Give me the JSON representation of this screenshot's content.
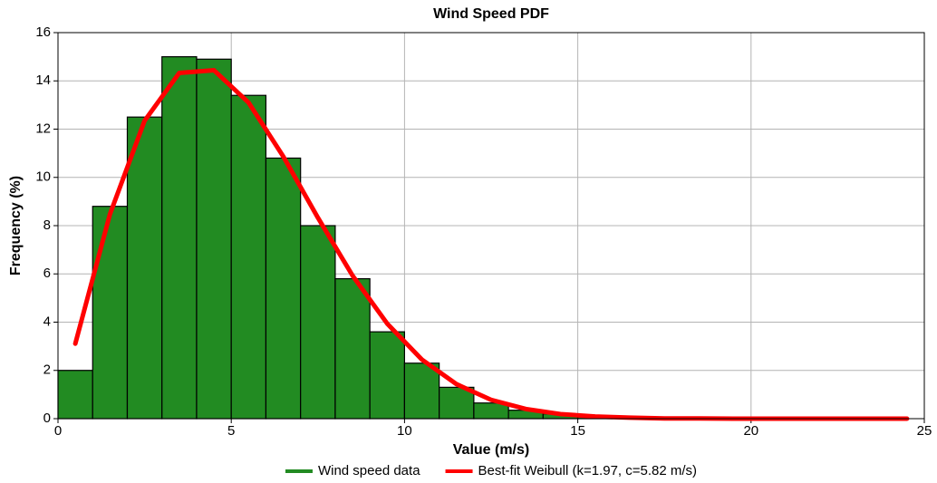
{
  "chart_data": {
    "type": "histogram",
    "title": "Wind Speed PDF",
    "x_label": "Value (m/s)",
    "y_label": "Frequency (%)",
    "xlim": [
      0,
      25
    ],
    "xticks": [
      0,
      5,
      10,
      15,
      20,
      25
    ],
    "ylim": [
      0,
      16
    ],
    "yticks": [
      0,
      2,
      4,
      6,
      8,
      10,
      12,
      14,
      16
    ],
    "grid": true,
    "legend": "bottom",
    "series": [
      {
        "name": "Wind speed data",
        "type": "histogram",
        "color": "#228b22",
        "bins": [
          0,
          1,
          2,
          3,
          4,
          5,
          6,
          7,
          8,
          9,
          10,
          11,
          12,
          13,
          14,
          15,
          16
        ],
        "values": [
          2.0,
          8.8,
          12.5,
          15.0,
          14.9,
          13.4,
          10.8,
          8.0,
          5.8,
          3.6,
          2.3,
          1.3,
          0.65,
          0.35,
          0.2,
          0.1
        ]
      },
      {
        "name": "Best-fit Weibull (k=1.97, c=5.82 m/s)",
        "type": "line",
        "color": "#ff0000",
        "x": [
          0.5,
          1.5,
          2.5,
          3.5,
          4.5,
          5.5,
          6.5,
          7.5,
          8.5,
          9.5,
          10.5,
          11.5,
          12.5,
          13.5,
          14.5,
          15.5,
          16.5,
          17.5,
          18.5,
          19.5,
          20.5,
          21.5,
          22.5,
          23.5,
          24.5
        ],
        "values": [
          3.11,
          8.48,
          12.35,
          14.33,
          14.44,
          13.1,
          10.87,
          8.33,
          5.93,
          3.94,
          2.45,
          1.43,
          0.78,
          0.4,
          0.19,
          0.09,
          0.04,
          0.01,
          0.01,
          0,
          0,
          0,
          0,
          0,
          0
        ]
      }
    ]
  }
}
